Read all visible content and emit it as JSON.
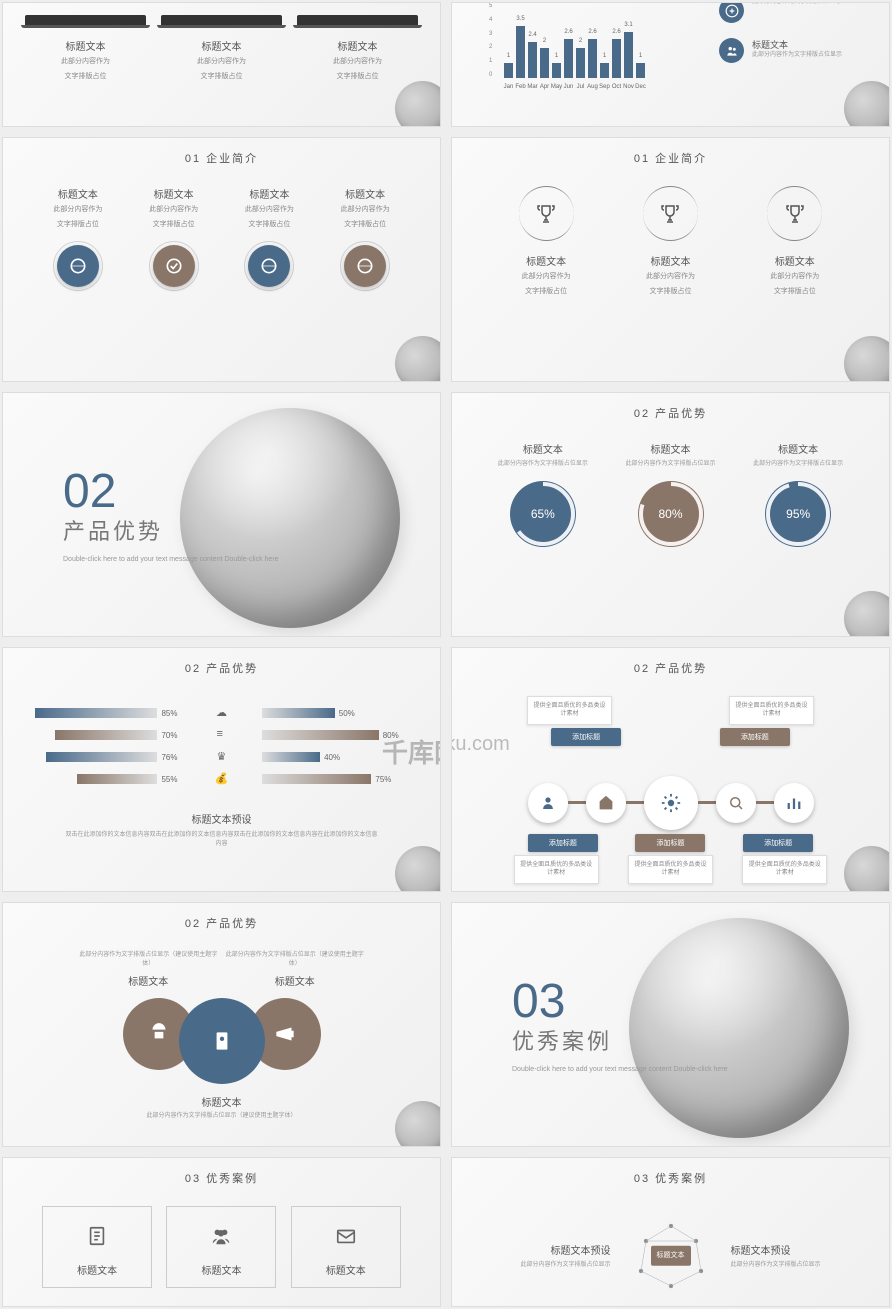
{
  "common": {
    "title": "标题文本",
    "sub1": "此部分内容作为",
    "sub2": "文字排版占位",
    "sub": "此部分内容作为文字排版占位显示（建议使用主题字体）",
    "subw": "此部分内容作为文字排版占位显示"
  },
  "watermark": {
    "logo": "千库网",
    "url": "588ku.com"
  },
  "c": {
    "blue": "#4a6a8a",
    "brown": "#8a7668",
    "gray": "#888"
  },
  "s1": {
    "items": [
      {},
      {},
      {}
    ]
  },
  "s2": {
    "header": "",
    "chart": {
      "ylim": [
        0,
        5
      ],
      "yticks": [
        0,
        1,
        2,
        3,
        4,
        5
      ],
      "bars": [
        {
          "m": "Jan",
          "v": 1
        },
        {
          "m": "Feb",
          "v": 3.5
        },
        {
          "m": "Mar",
          "v": 2.4
        },
        {
          "m": "Apr",
          "v": 2
        },
        {
          "m": "May",
          "v": 1
        },
        {
          "m": "Jun",
          "v": 2.6
        },
        {
          "m": "Jul",
          "v": 2
        },
        {
          "m": "Aug",
          "v": 2.6
        },
        {
          "m": "Sep",
          "v": 1
        },
        {
          "m": "Oct",
          "v": 2.6
        },
        {
          "m": "Nov",
          "v": 3.1
        },
        {
          "m": "Dec",
          "v": 1
        }
      ],
      "bar_color": "#4a6a8a"
    }
  },
  "s3": {
    "header": "01 企业简介",
    "colors": [
      "#4a6a8a",
      "#8a7668",
      "#4a6a8a",
      "#8a7668"
    ]
  },
  "s4": {
    "header": "01 企业简介"
  },
  "s5": {
    "num": "02",
    "title": "产品优势",
    "sub": "Double-click here to add your text\nmessage content Double-click here"
  },
  "s6": {
    "header": "02 产品优势",
    "items": [
      {
        "pct": 65,
        "color": "#4a6a8a"
      },
      {
        "pct": 80,
        "color": "#8a7668"
      },
      {
        "pct": 95,
        "color": "#4a6a8a"
      }
    ]
  },
  "s7": {
    "header": "02 产品优势",
    "preset": "标题文本预设",
    "desc": "双击在此添加你的文本信息内容双击在此添加你的文本信息内容双击在此添加你的文本信息内容在此添加你的文本信息内容",
    "left": [
      {
        "v": 85,
        "c": "#4a6a8a"
      },
      {
        "v": 70,
        "c": "#8a7668"
      },
      {
        "v": 76,
        "c": "#4a6a8a"
      },
      {
        "v": 55,
        "c": "#8a7668"
      }
    ],
    "right": [
      {
        "v": 50,
        "c": "#4a6a8a"
      },
      {
        "v": 80,
        "c": "#8a7668"
      },
      {
        "v": 40,
        "c": "#4a6a8a"
      },
      {
        "v": 75,
        "c": "#8a7668"
      }
    ]
  },
  "s8": {
    "header": "02 产品优势",
    "add": "添加标题",
    "box": "提供全面且质优的多品类设计素材",
    "nodes": [
      {
        "c": "#4a6a8a"
      },
      {
        "c": "#8a7668"
      },
      {
        "c": "#4a6a8a"
      },
      {
        "c": "#8a7668"
      },
      {
        "c": "#4a6a8a"
      }
    ],
    "lab_colors": [
      "#4a6a8a",
      "#8a7668",
      "#4a6a8a",
      "#8a7668",
      "#4a6a8a"
    ]
  },
  "s9": {
    "header": "02 产品优势",
    "colors": [
      "#8a7668",
      "#4a6a8a",
      "#8a7668"
    ]
  },
  "s10": {
    "num": "03",
    "title": "优秀案例",
    "sub": "Double-click here to add your text\nmessage content Double-click here"
  },
  "s11": {
    "header": "03 优秀案例"
  },
  "s12": {
    "header": "03 优秀案例",
    "preset": "标题文本预设",
    "badge": "标题文本",
    "sub": "此部分内容作为文字排版占位显示"
  }
}
